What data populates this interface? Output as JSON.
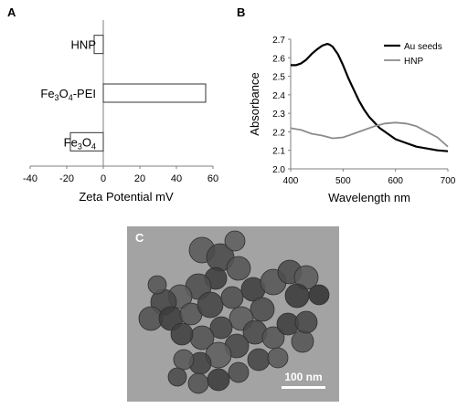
{
  "panels": {
    "a_letter": "A",
    "b_letter": "B",
    "c_letter": "C"
  },
  "chart_data": [
    {
      "type": "bar",
      "orientation": "horizontal",
      "categories": [
        "HNP",
        "Fe3O4-PEI",
        "Fe3O4"
      ],
      "category_labels": [
        {
          "main": "HNP",
          "sub": "",
          "tail": ""
        },
        {
          "main": "Fe",
          "sub": "3",
          "mid": "O",
          "sub2": "4",
          "tail": "-PEI"
        },
        {
          "main": "Fe",
          "sub": "3",
          "mid": "O",
          "sub2": "4",
          "tail": ""
        }
      ],
      "values": [
        -5,
        56,
        -18
      ],
      "xlabel": "Zeta Potential mV",
      "xlim": [
        -40,
        60
      ],
      "xticks": [
        -40,
        -20,
        0,
        20,
        40,
        60
      ],
      "grid": false,
      "bar_fill": "#ffffff",
      "bar_stroke": "#333333"
    },
    {
      "type": "line",
      "xlabel": "Wavelength nm",
      "ylabel": "Absorbance",
      "xlim": [
        400,
        700
      ],
      "ylim": [
        2.0,
        2.7
      ],
      "xticks": [
        400,
        500,
        600,
        700
      ],
      "yticks": [
        2.0,
        2.1,
        2.2,
        2.3,
        2.4,
        2.5,
        2.6,
        2.7
      ],
      "grid": false,
      "legend_position": "top-right",
      "series": [
        {
          "name": "Au seeds",
          "color": "#000000",
          "x": [
            400,
            410,
            420,
            430,
            440,
            450,
            460,
            470,
            475,
            480,
            490,
            500,
            510,
            520,
            530,
            540,
            550,
            560,
            570,
            580,
            600,
            620,
            640,
            660,
            680,
            700
          ],
          "y": [
            2.56,
            2.56,
            2.57,
            2.59,
            2.62,
            2.645,
            2.665,
            2.675,
            2.67,
            2.66,
            2.62,
            2.56,
            2.49,
            2.43,
            2.37,
            2.32,
            2.28,
            2.25,
            2.22,
            2.2,
            2.16,
            2.14,
            2.12,
            2.11,
            2.1,
            2.095
          ]
        },
        {
          "name": "HNP",
          "color": "#8c8c8c",
          "x": [
            400,
            420,
            440,
            460,
            480,
            500,
            520,
            540,
            560,
            580,
            600,
            620,
            640,
            660,
            680,
            700
          ],
          "y": [
            2.22,
            2.21,
            2.19,
            2.18,
            2.165,
            2.17,
            2.19,
            2.21,
            2.23,
            2.245,
            2.25,
            2.245,
            2.23,
            2.2,
            2.17,
            2.12
          ]
        }
      ]
    }
  ],
  "tem_image": {
    "scale_label": "100 nm",
    "background_color": "#a3a3a3"
  }
}
